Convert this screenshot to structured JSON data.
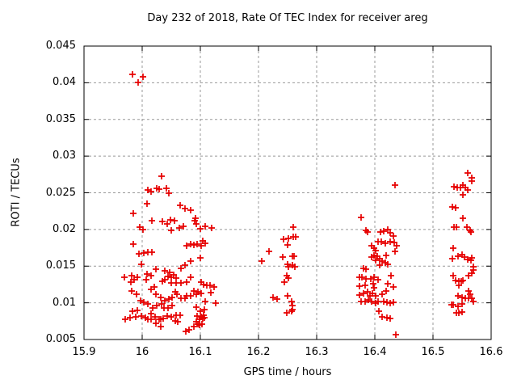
{
  "title": "Day 232 of 2018, Rate Of TEC Index for receiver areg",
  "chart_data": {
    "type": "scatter",
    "title": "Day 232 of 2018, Rate Of TEC Index for receiver areg",
    "xlabel": "GPS time / hours",
    "ylabel": "ROTI / TECUs",
    "xlim": [
      15.9,
      16.6
    ],
    "ylim": [
      0.005,
      0.045
    ],
    "xtick_values": [
      15.9,
      16.0,
      16.1,
      16.2,
      16.3,
      16.4,
      16.5,
      16.6
    ],
    "xtick_labels": [
      "15.9",
      "16",
      "16.1",
      "16.2",
      "16.3",
      "16.4",
      "16.5",
      "16.6"
    ],
    "ytick_values": [
      0.005,
      0.01,
      0.015,
      0.02,
      0.025,
      0.03,
      0.035,
      0.04,
      0.045
    ],
    "ytick_labels": [
      "0.005",
      "0.01",
      "0.015",
      "0.02",
      "0.025",
      "0.03",
      "0.035",
      "0.04",
      "0.045"
    ],
    "grid": true,
    "legend": "none",
    "marker": "plus",
    "marker_color": "#e60000",
    "grid_color": "#999999",
    "axis_color": "#000000",
    "series": [
      {
        "name": "ROTI",
        "points": [
          [
            15.983,
            0.0411
          ],
          [
            16.001,
            0.0408
          ],
          [
            15.993,
            0.04
          ],
          [
            16.033,
            0.0273
          ],
          [
            16.01,
            0.0254
          ],
          [
            16.015,
            0.0252
          ],
          [
            16.025,
            0.0256
          ],
          [
            16.029,
            0.0255
          ],
          [
            16.042,
            0.0256
          ],
          [
            16.046,
            0.025
          ],
          [
            16.008,
            0.0235
          ],
          [
            15.985,
            0.0222
          ],
          [
            16.065,
            0.0233
          ],
          [
            16.074,
            0.0228
          ],
          [
            16.083,
            0.0226
          ],
          [
            16.092,
            0.0215
          ],
          [
            16.017,
            0.0212
          ],
          [
            16.035,
            0.0211
          ],
          [
            16.043,
            0.0208
          ],
          [
            16.049,
            0.0213
          ],
          [
            16.056,
            0.0212
          ],
          [
            16.064,
            0.0202
          ],
          [
            16.071,
            0.0204
          ],
          [
            16.09,
            0.0212
          ],
          [
            16.093,
            0.0208
          ],
          [
            15.996,
            0.0203
          ],
          [
            16.001,
            0.02
          ],
          [
            16.05,
            0.0199
          ],
          [
            16.1,
            0.0201
          ],
          [
            16.108,
            0.0204
          ],
          [
            16.119,
            0.0202
          ],
          [
            15.985,
            0.018
          ],
          [
            16.076,
            0.0178
          ],
          [
            16.083,
            0.018
          ],
          [
            16.089,
            0.0179
          ],
          [
            16.094,
            0.018
          ],
          [
            16.101,
            0.0178
          ],
          [
            16.108,
            0.0181
          ],
          [
            16.104,
            0.0184
          ],
          [
            15.994,
            0.0167
          ],
          [
            16.003,
            0.0168
          ],
          [
            16.01,
            0.0169
          ],
          [
            16.017,
            0.0169
          ],
          [
            16.1,
            0.0161
          ],
          [
            16.083,
            0.0157
          ],
          [
            16.074,
            0.0151
          ],
          [
            15.999,
            0.0153
          ],
          [
            16.024,
            0.0146
          ],
          [
            16.039,
            0.0144
          ],
          [
            16.047,
            0.0142
          ],
          [
            16.054,
            0.0138
          ],
          [
            16.067,
            0.0147
          ],
          [
            16.008,
            0.0139
          ],
          [
            16.015,
            0.0137
          ],
          [
            15.992,
            0.0135
          ],
          [
            15.982,
            0.0137
          ],
          [
            15.969,
            0.0135
          ],
          [
            16.044,
            0.0136
          ],
          [
            16.05,
            0.0135
          ],
          [
            16.058,
            0.0134
          ],
          [
            16.083,
            0.0135
          ],
          [
            15.981,
            0.0128
          ],
          [
            15.986,
            0.0131
          ],
          [
            16.007,
            0.0132
          ],
          [
            16.035,
            0.0129
          ],
          [
            16.039,
            0.0132
          ],
          [
            16.05,
            0.0127
          ],
          [
            16.058,
            0.0127
          ],
          [
            16.067,
            0.0127
          ],
          [
            16.076,
            0.0128
          ],
          [
            16.124,
            0.0122
          ],
          [
            16.101,
            0.0128
          ],
          [
            16.106,
            0.0125
          ],
          [
            16.111,
            0.0124
          ],
          [
            16.117,
            0.0124
          ],
          [
            15.982,
            0.0116
          ],
          [
            15.99,
            0.0112
          ],
          [
            16.015,
            0.0118
          ],
          [
            16.021,
            0.0122
          ],
          [
            16.024,
            0.0112
          ],
          [
            16.032,
            0.0107
          ],
          [
            16.039,
            0.0103
          ],
          [
            16.046,
            0.0105
          ],
          [
            16.051,
            0.0107
          ],
          [
            16.057,
            0.0115
          ],
          [
            16.06,
            0.0112
          ],
          [
            16.067,
            0.0106
          ],
          [
            16.074,
            0.0106
          ],
          [
            16.076,
            0.011
          ],
          [
            16.083,
            0.011
          ],
          [
            16.089,
            0.0116
          ],
          [
            16.093,
            0.0112
          ],
          [
            16.096,
            0.0115
          ],
          [
            16.118,
            0.0114
          ],
          [
            16.101,
            0.0113
          ],
          [
            16.126,
            0.01
          ],
          [
            15.997,
            0.0103
          ],
          [
            16.003,
            0.0101
          ],
          [
            16.01,
            0.0099
          ],
          [
            16.018,
            0.0093
          ],
          [
            16.025,
            0.0096
          ],
          [
            16.033,
            0.0099
          ],
          [
            16.038,
            0.0093
          ],
          [
            16.044,
            0.0093
          ],
          [
            16.051,
            0.0096
          ],
          [
            16.108,
            0.0102
          ],
          [
            15.983,
            0.0089
          ],
          [
            15.992,
            0.009
          ],
          [
            16.015,
            0.0085
          ],
          [
            16.022,
            0.0081
          ],
          [
            16.058,
            0.0083
          ],
          [
            16.065,
            0.0083
          ],
          [
            16.093,
            0.0094
          ],
          [
            16.1,
            0.0089
          ],
          [
            16.106,
            0.0083
          ],
          [
            16.107,
            0.0091
          ],
          [
            16.101,
            0.0081
          ],
          [
            16.107,
            0.008
          ],
          [
            16.032,
            0.0078
          ],
          [
            16.093,
            0.0074
          ],
          [
            16.099,
            0.007
          ],
          [
            16.075,
            0.0061
          ],
          [
            16.081,
            0.0063
          ],
          [
            16.103,
            0.0071
          ],
          [
            15.971,
            0.0077
          ],
          [
            15.979,
            0.008
          ],
          [
            15.989,
            0.0081
          ],
          [
            15.999,
            0.0082
          ],
          [
            16.006,
            0.008
          ],
          [
            16.01,
            0.0078
          ],
          [
            16.015,
            0.0077
          ],
          [
            16.024,
            0.0072
          ],
          [
            16.032,
            0.0068
          ],
          [
            16.029,
            0.0078
          ],
          [
            16.036,
            0.0079
          ],
          [
            16.043,
            0.0082
          ],
          [
            16.05,
            0.0081
          ],
          [
            16.057,
            0.0075
          ],
          [
            16.061,
            0.0074
          ],
          [
            16.089,
            0.0068
          ],
          [
            16.096,
            0.0071
          ],
          [
            16.099,
            0.0078
          ],
          [
            16.104,
            0.0079
          ],
          [
            16.094,
            0.0082
          ],
          [
            16.26,
            0.0203
          ],
          [
            16.251,
            0.0188
          ],
          [
            16.243,
            0.0187
          ],
          [
            16.26,
            0.019
          ],
          [
            16.264,
            0.019
          ],
          [
            16.25,
            0.0179
          ],
          [
            16.218,
            0.017
          ],
          [
            16.242,
            0.0162
          ],
          [
            16.258,
            0.0163
          ],
          [
            16.261,
            0.0163
          ],
          [
            16.206,
            0.0157
          ],
          [
            16.25,
            0.0152
          ],
          [
            16.251,
            0.0149
          ],
          [
            16.258,
            0.0151
          ],
          [
            16.263,
            0.0149
          ],
          [
            16.249,
            0.0137
          ],
          [
            16.251,
            0.0134
          ],
          [
            16.244,
            0.0128
          ],
          [
            16.225,
            0.0107
          ],
          [
            16.232,
            0.0105
          ],
          [
            16.25,
            0.0109
          ],
          [
            16.257,
            0.0102
          ],
          [
            16.258,
            0.0096
          ],
          [
            16.258,
            0.0091
          ],
          [
            16.249,
            0.0086
          ],
          [
            16.257,
            0.0089
          ],
          [
            16.435,
            0.026
          ],
          [
            16.376,
            0.0216
          ],
          [
            16.385,
            0.0199
          ],
          [
            16.388,
            0.0197
          ],
          [
            16.41,
            0.0197
          ],
          [
            16.415,
            0.0198
          ],
          [
            16.422,
            0.02
          ],
          [
            16.426,
            0.0196
          ],
          [
            16.432,
            0.0191
          ],
          [
            16.406,
            0.0183
          ],
          [
            16.411,
            0.0183
          ],
          [
            16.418,
            0.0181
          ],
          [
            16.426,
            0.0183
          ],
          [
            16.433,
            0.0182
          ],
          [
            16.437,
            0.0178
          ],
          [
            16.394,
            0.0178
          ],
          [
            16.399,
            0.0174
          ],
          [
            16.401,
            0.0171
          ],
          [
            16.435,
            0.017
          ],
          [
            16.419,
            0.0165
          ],
          [
            16.399,
            0.0165
          ],
          [
            16.404,
            0.0163
          ],
          [
            16.394,
            0.0162
          ],
          [
            16.401,
            0.0158
          ],
          [
            16.408,
            0.016
          ],
          [
            16.413,
            0.0157
          ],
          [
            16.418,
            0.0155
          ],
          [
            16.422,
            0.0153
          ],
          [
            16.408,
            0.0151
          ],
          [
            16.381,
            0.0147
          ],
          [
            16.385,
            0.0146
          ],
          [
            16.374,
            0.0135
          ],
          [
            16.378,
            0.0135
          ],
          [
            16.385,
            0.0133
          ],
          [
            16.393,
            0.0133
          ],
          [
            16.399,
            0.0135
          ],
          [
            16.406,
            0.0132
          ],
          [
            16.428,
            0.0137
          ],
          [
            16.374,
            0.0123
          ],
          [
            16.383,
            0.0124
          ],
          [
            16.397,
            0.0126
          ],
          [
            16.399,
            0.0121
          ],
          [
            16.422,
            0.0126
          ],
          [
            16.432,
            0.0122
          ],
          [
            16.374,
            0.0111
          ],
          [
            16.381,
            0.0113
          ],
          [
            16.388,
            0.0115
          ],
          [
            16.392,
            0.011
          ],
          [
            16.396,
            0.0113
          ],
          [
            16.401,
            0.0109
          ],
          [
            16.413,
            0.0112
          ],
          [
            16.419,
            0.0116
          ],
          [
            16.376,
            0.0102
          ],
          [
            16.383,
            0.0102
          ],
          [
            16.389,
            0.0104
          ],
          [
            16.394,
            0.0102
          ],
          [
            16.401,
            0.01
          ],
          [
            16.406,
            0.0102
          ],
          [
            16.415,
            0.0102
          ],
          [
            16.421,
            0.0101
          ],
          [
            16.426,
            0.01
          ],
          [
            16.432,
            0.0101
          ],
          [
            16.407,
            0.0089
          ],
          [
            16.413,
            0.0081
          ],
          [
            16.421,
            0.008
          ],
          [
            16.426,
            0.0079
          ],
          [
            16.436,
            0.0057
          ],
          [
            16.56,
            0.0277
          ],
          [
            16.567,
            0.027
          ],
          [
            16.567,
            0.0266
          ],
          [
            16.536,
            0.0258
          ],
          [
            16.542,
            0.0257
          ],
          [
            16.547,
            0.0257
          ],
          [
            16.551,
            0.026
          ],
          [
            16.556,
            0.0257
          ],
          [
            16.56,
            0.0254
          ],
          [
            16.551,
            0.0247
          ],
          [
            16.533,
            0.0231
          ],
          [
            16.539,
            0.023
          ],
          [
            16.551,
            0.0215
          ],
          [
            16.536,
            0.0203
          ],
          [
            16.54,
            0.0203
          ],
          [
            16.558,
            0.0203
          ],
          [
            16.564,
            0.0199
          ],
          [
            16.565,
            0.0197
          ],
          [
            16.535,
            0.0174
          ],
          [
            16.533,
            0.016
          ],
          [
            16.543,
            0.0164
          ],
          [
            16.55,
            0.0166
          ],
          [
            16.554,
            0.0162
          ],
          [
            16.56,
            0.0159
          ],
          [
            16.565,
            0.0158
          ],
          [
            16.567,
            0.0161
          ],
          [
            16.569,
            0.0149
          ],
          [
            16.569,
            0.0145
          ],
          [
            16.567,
            0.014
          ],
          [
            16.561,
            0.0137
          ],
          [
            16.535,
            0.0137
          ],
          [
            16.539,
            0.013
          ],
          [
            16.544,
            0.0129
          ],
          [
            16.549,
            0.0129
          ],
          [
            16.551,
            0.013
          ],
          [
            16.544,
            0.0124
          ],
          [
            16.561,
            0.0116
          ],
          [
            16.564,
            0.0112
          ],
          [
            16.543,
            0.0109
          ],
          [
            16.55,
            0.0107
          ],
          [
            16.555,
            0.0106
          ],
          [
            16.561,
            0.0106
          ],
          [
            16.567,
            0.0106
          ],
          [
            16.569,
            0.0102
          ],
          [
            16.532,
            0.0097
          ],
          [
            16.535,
            0.0097
          ],
          [
            16.543,
            0.0095
          ],
          [
            16.55,
            0.0098
          ],
          [
            16.54,
            0.0086
          ],
          [
            16.545,
            0.0086
          ],
          [
            16.55,
            0.0087
          ]
        ]
      }
    ]
  }
}
